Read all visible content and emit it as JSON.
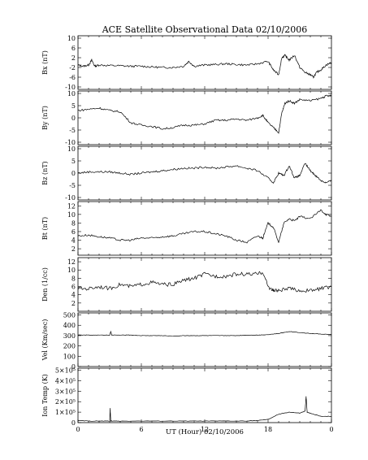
{
  "title": "ACE Satellite Observational Data   02/10/2006",
  "xlabel": "UT (Hour)   02/10/2006",
  "xticks": [
    "0",
    "6",
    "12",
    "18",
    "0"
  ],
  "chart_data": [
    {
      "type": "line",
      "name": "Bx",
      "ylabel": "Bx (nT)",
      "ylim": [
        -11,
        11
      ],
      "yticks": [
        "10",
        "6",
        "2",
        "-2",
        "-6",
        "-10"
      ],
      "ytick_values": [
        10,
        6,
        2,
        -2,
        -6,
        -10
      ],
      "x": [
        0,
        0.5,
        1,
        1.3,
        1.6,
        2,
        3,
        4,
        5,
        6,
        7,
        8,
        9,
        10,
        10.5,
        11,
        12,
        13,
        14,
        15,
        16,
        17,
        18,
        18.5,
        19,
        19.3,
        19.6,
        20,
        20.5,
        21,
        21.5,
        22,
        22.3,
        22.6,
        23,
        23.5,
        24
      ],
      "values": [
        -1,
        -1.5,
        -1,
        1,
        -1.5,
        -1,
        -1.2,
        -1.3,
        -1.5,
        -1.5,
        -1.8,
        -2,
        -2,
        -1.5,
        0.5,
        -1.5,
        -1,
        -0.8,
        -0.5,
        -0.8,
        -1,
        -0.5,
        0.5,
        -3,
        -5,
        2,
        3,
        1,
        3,
        -2,
        -4,
        -5,
        -6,
        -4,
        -3,
        -1,
        0
      ]
    },
    {
      "type": "line",
      "name": "By",
      "ylabel": "By (nT)",
      "ylim": [
        -11,
        11
      ],
      "yticks": [
        "10",
        "5",
        "0",
        "-5",
        "-10"
      ],
      "ytick_values": [
        10,
        5,
        0,
        -5,
        -10
      ],
      "x": [
        0,
        1,
        2,
        3,
        4,
        5,
        6,
        7,
        8,
        9,
        10,
        11,
        12,
        13,
        14,
        15,
        16,
        17,
        17.5,
        18,
        18.5,
        19,
        19.3,
        19.6,
        20,
        20.5,
        21,
        22,
        23,
        23.5,
        24
      ],
      "values": [
        3,
        3.5,
        4,
        3,
        2.5,
        -2,
        -3,
        -3.5,
        -4.5,
        -4,
        -3,
        -3,
        -2.5,
        -1,
        -1,
        -0.5,
        -1,
        0,
        1,
        -2,
        -4,
        -6,
        2,
        6,
        7,
        6,
        7.5,
        7,
        8,
        9,
        9
      ]
    },
    {
      "type": "line",
      "name": "Bz",
      "ylabel": "Bz (nT)",
      "ylim": [
        -11,
        11
      ],
      "yticks": [
        "10",
        "5",
        "0",
        "-5",
        "-10"
      ],
      "ytick_values": [
        10,
        5,
        0,
        -5,
        -10
      ],
      "x": [
        0,
        1,
        2,
        3,
        4,
        5,
        6,
        7,
        8,
        9,
        10,
        11,
        12,
        13,
        14,
        15,
        16,
        17,
        18,
        18.5,
        19,
        19.5,
        20,
        20.5,
        21,
        21.5,
        22,
        22.5,
        23,
        23.5,
        24
      ],
      "values": [
        0,
        0.5,
        0.5,
        0.5,
        0,
        -0.5,
        0,
        0.5,
        1,
        1.5,
        2,
        2,
        2.5,
        2,
        2.5,
        3,
        2,
        1,
        -2,
        -4,
        0,
        -1,
        3,
        -2,
        -1,
        4,
        1,
        -1,
        -3,
        -4,
        -3
      ]
    },
    {
      "type": "line",
      "name": "Bt",
      "ylabel": "Bt (nT)",
      "ylim": [
        0.5,
        13
      ],
      "yticks": [
        "12",
        "10",
        "8",
        "6",
        "4",
        "2"
      ],
      "ytick_values": [
        12,
        10,
        8,
        6,
        4,
        2
      ],
      "x": [
        0,
        1,
        2,
        3,
        4,
        5,
        6,
        7,
        8,
        9,
        10,
        11,
        12,
        13,
        14,
        15,
        16,
        17,
        17.5,
        18,
        18.5,
        19,
        19.5,
        20,
        20.5,
        21,
        22,
        23,
        23.5,
        24
      ],
      "values": [
        5,
        5.2,
        4.8,
        4.5,
        4,
        4,
        4.5,
        4.5,
        4.8,
        5,
        5.5,
        6,
        6,
        5.5,
        5,
        4,
        3.5,
        5,
        4.5,
        8,
        7,
        3.5,
        8,
        9,
        8.5,
        9.5,
        9,
        11,
        10,
        9.5
      ]
    },
    {
      "type": "line",
      "name": "Den",
      "ylabel": "Den (1/cc)",
      "ylim": [
        0,
        13
      ],
      "yticks": [
        "12",
        "10",
        "8",
        "6",
        "4",
        "2"
      ],
      "ytick_values": [
        12,
        10,
        8,
        6,
        4,
        2
      ],
      "x": [
        0,
        1,
        2,
        3,
        4,
        5,
        6,
        7,
        8,
        9,
        10,
        11,
        12,
        13,
        14,
        15,
        16,
        17,
        17.5,
        18,
        18.5,
        19,
        20,
        21,
        22,
        23,
        24
      ],
      "values": [
        5.5,
        5.5,
        6,
        5.5,
        6.5,
        6,
        6.5,
        7,
        6.5,
        6.5,
        7.5,
        8,
        9,
        8.5,
        8.5,
        9,
        9,
        9,
        9.5,
        6,
        5,
        5,
        5.5,
        5,
        5,
        5.5,
        6
      ]
    },
    {
      "type": "line",
      "name": "Vel",
      "ylabel": "Vel (Km/sec)",
      "ylim": [
        0,
        520
      ],
      "yticks": [
        "500",
        "400",
        "300",
        "200",
        "100",
        "0"
      ],
      "ytick_values": [
        500,
        400,
        300,
        200,
        100,
        0
      ],
      "x": [
        0,
        1,
        2,
        3,
        3.1,
        3.2,
        4,
        5,
        6,
        7,
        8,
        9,
        10,
        11,
        12,
        13,
        14,
        15,
        16,
        17,
        18,
        19,
        20,
        21,
        22,
        23,
        24
      ],
      "values": [
        305,
        305,
        305,
        305,
        340,
        305,
        305,
        305,
        300,
        300,
        300,
        295,
        300,
        300,
        300,
        300,
        300,
        300,
        305,
        305,
        310,
        320,
        340,
        330,
        320,
        315,
        310
      ]
    },
    {
      "type": "line",
      "name": "Ion Temp",
      "ylabel": "Ion Temp (K)",
      "ylim": [
        0,
        520000
      ],
      "yticks": [
        "5×10⁵",
        "4×10⁵",
        "3×10⁵",
        "2×10⁵",
        "1×10⁵",
        "0"
      ],
      "ytick_values": [
        500000,
        400000,
        300000,
        200000,
        100000,
        0
      ],
      "x": [
        0,
        1,
        2,
        3,
        3.05,
        3.1,
        3.2,
        4,
        6,
        8,
        10,
        12,
        14,
        16,
        17,
        18,
        19,
        20,
        21,
        21.5,
        21.6,
        21.7,
        22,
        23,
        24
      ],
      "values": [
        20000,
        15000,
        15000,
        15000,
        140000,
        15000,
        15000,
        15000,
        15000,
        15000,
        15000,
        15000,
        15000,
        15000,
        20000,
        30000,
        80000,
        100000,
        90000,
        110000,
        250000,
        100000,
        90000,
        60000,
        60000
      ]
    }
  ]
}
